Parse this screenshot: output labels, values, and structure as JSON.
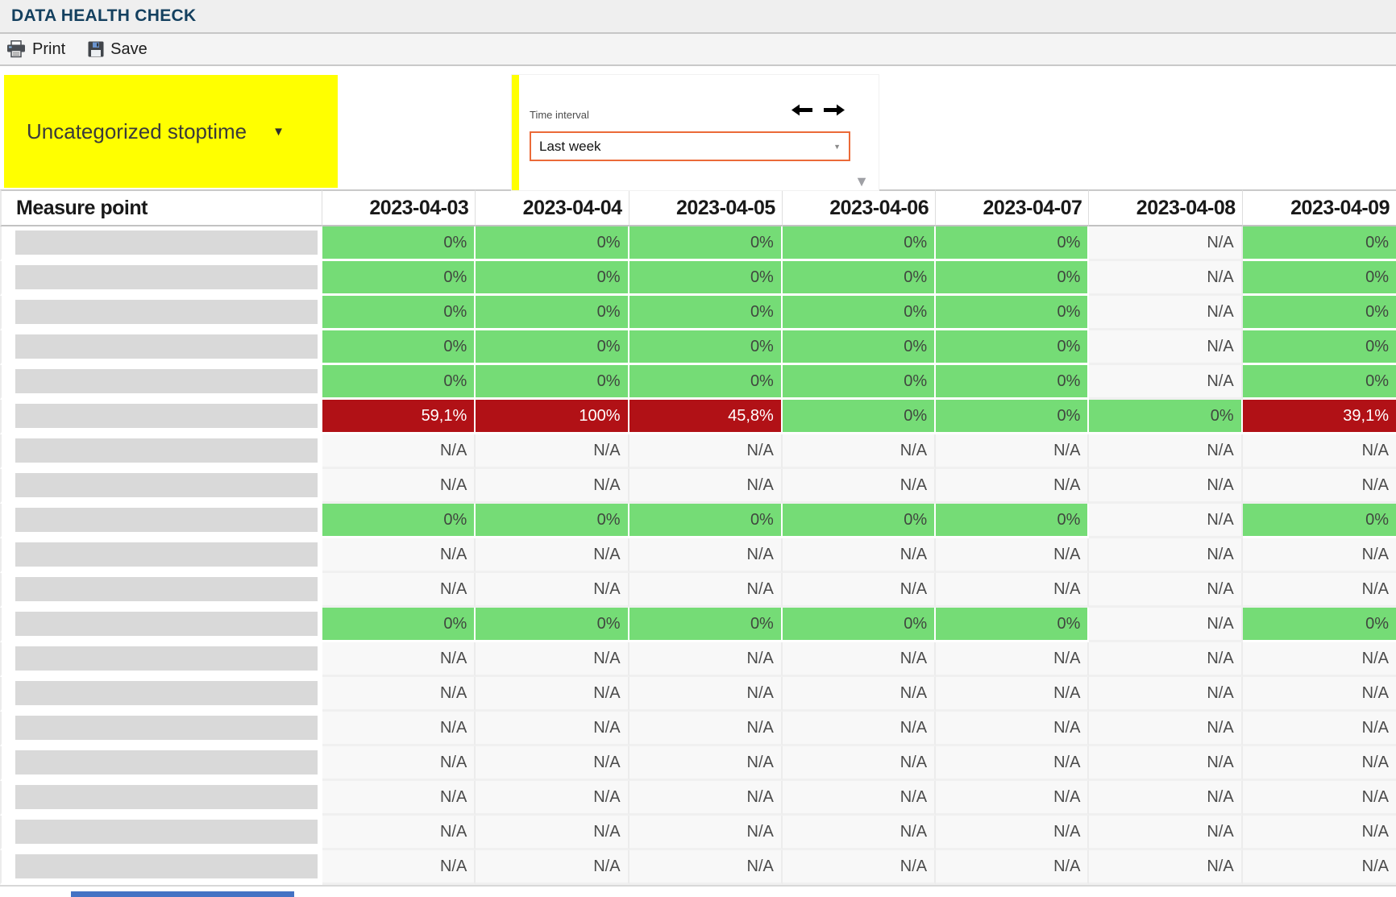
{
  "window": {
    "title": "DATA HEALTH CHECK"
  },
  "toolbar": {
    "print_label": "Print",
    "save_label": "Save"
  },
  "filters": {
    "stoptime_dropdown": {
      "value": "Uncategorized stoptime"
    },
    "time_interval": {
      "label": "Time interval",
      "selected_value": "Last week"
    }
  },
  "icons": {
    "caret_down": "▼",
    "expand_indicator": "▼"
  },
  "colors": {
    "title_color": "#14405F",
    "yellow": "#FFFF00",
    "select_border": "#EB6A38",
    "green": "#75DC76",
    "red": "#B11116",
    "na_bg": "#F8F8F8",
    "blue_strip": "#4472C4"
  },
  "table": {
    "measure_point_header": "Measure point",
    "date_headers": [
      "2023-04-03",
      "2023-04-04",
      "2023-04-05",
      "2023-04-06",
      "2023-04-07",
      "2023-04-08",
      "2023-04-09"
    ],
    "rows": [
      {
        "values": [
          "0%",
          "0%",
          "0%",
          "0%",
          "0%",
          "N/A",
          "0%"
        ],
        "states": [
          "ok",
          "ok",
          "ok",
          "ok",
          "ok",
          "na",
          "ok"
        ]
      },
      {
        "values": [
          "0%",
          "0%",
          "0%",
          "0%",
          "0%",
          "N/A",
          "0%"
        ],
        "states": [
          "ok",
          "ok",
          "ok",
          "ok",
          "ok",
          "na",
          "ok"
        ]
      },
      {
        "values": [
          "0%",
          "0%",
          "0%",
          "0%",
          "0%",
          "N/A",
          "0%"
        ],
        "states": [
          "ok",
          "ok",
          "ok",
          "ok",
          "ok",
          "na",
          "ok"
        ]
      },
      {
        "values": [
          "0%",
          "0%",
          "0%",
          "0%",
          "0%",
          "N/A",
          "0%"
        ],
        "states": [
          "ok",
          "ok",
          "ok",
          "ok",
          "ok",
          "na",
          "ok"
        ]
      },
      {
        "values": [
          "0%",
          "0%",
          "0%",
          "0%",
          "0%",
          "N/A",
          "0%"
        ],
        "states": [
          "ok",
          "ok",
          "ok",
          "ok",
          "ok",
          "na",
          "ok"
        ]
      },
      {
        "values": [
          "59,1%",
          "100%",
          "45,8%",
          "0%",
          "0%",
          "0%",
          "39,1%"
        ],
        "states": [
          "alert",
          "alert",
          "alert",
          "ok",
          "ok",
          "ok",
          "alert"
        ]
      },
      {
        "values": [
          "N/A",
          "N/A",
          "N/A",
          "N/A",
          "N/A",
          "N/A",
          "N/A"
        ],
        "states": [
          "na",
          "na",
          "na",
          "na",
          "na",
          "na",
          "na"
        ]
      },
      {
        "values": [
          "N/A",
          "N/A",
          "N/A",
          "N/A",
          "N/A",
          "N/A",
          "N/A"
        ],
        "states": [
          "na",
          "na",
          "na",
          "na",
          "na",
          "na",
          "na"
        ]
      },
      {
        "values": [
          "0%",
          "0%",
          "0%",
          "0%",
          "0%",
          "N/A",
          "0%"
        ],
        "states": [
          "ok",
          "ok",
          "ok",
          "ok",
          "ok",
          "na",
          "ok"
        ]
      },
      {
        "values": [
          "N/A",
          "N/A",
          "N/A",
          "N/A",
          "N/A",
          "N/A",
          "N/A"
        ],
        "states": [
          "na",
          "na",
          "na",
          "na",
          "na",
          "na",
          "na"
        ]
      },
      {
        "values": [
          "N/A",
          "N/A",
          "N/A",
          "N/A",
          "N/A",
          "N/A",
          "N/A"
        ],
        "states": [
          "na",
          "na",
          "na",
          "na",
          "na",
          "na",
          "na"
        ]
      },
      {
        "values": [
          "0%",
          "0%",
          "0%",
          "0%",
          "0%",
          "N/A",
          "0%"
        ],
        "states": [
          "ok",
          "ok",
          "ok",
          "ok",
          "ok",
          "na",
          "ok"
        ]
      },
      {
        "values": [
          "N/A",
          "N/A",
          "N/A",
          "N/A",
          "N/A",
          "N/A",
          "N/A"
        ],
        "states": [
          "na",
          "na",
          "na",
          "na",
          "na",
          "na",
          "na"
        ]
      },
      {
        "values": [
          "N/A",
          "N/A",
          "N/A",
          "N/A",
          "N/A",
          "N/A",
          "N/A"
        ],
        "states": [
          "na",
          "na",
          "na",
          "na",
          "na",
          "na",
          "na"
        ]
      },
      {
        "values": [
          "N/A",
          "N/A",
          "N/A",
          "N/A",
          "N/A",
          "N/A",
          "N/A"
        ],
        "states": [
          "na",
          "na",
          "na",
          "na",
          "na",
          "na",
          "na"
        ]
      },
      {
        "values": [
          "N/A",
          "N/A",
          "N/A",
          "N/A",
          "N/A",
          "N/A",
          "N/A"
        ],
        "states": [
          "na",
          "na",
          "na",
          "na",
          "na",
          "na",
          "na"
        ]
      },
      {
        "values": [
          "N/A",
          "N/A",
          "N/A",
          "N/A",
          "N/A",
          "N/A",
          "N/A"
        ],
        "states": [
          "na",
          "na",
          "na",
          "na",
          "na",
          "na",
          "na"
        ]
      },
      {
        "values": [
          "N/A",
          "N/A",
          "N/A",
          "N/A",
          "N/A",
          "N/A",
          "N/A"
        ],
        "states": [
          "na",
          "na",
          "na",
          "na",
          "na",
          "na",
          "na"
        ]
      },
      {
        "values": [
          "N/A",
          "N/A",
          "N/A",
          "N/A",
          "N/A",
          "N/A",
          "N/A"
        ],
        "states": [
          "na",
          "na",
          "na",
          "na",
          "na",
          "na",
          "na"
        ]
      }
    ]
  }
}
